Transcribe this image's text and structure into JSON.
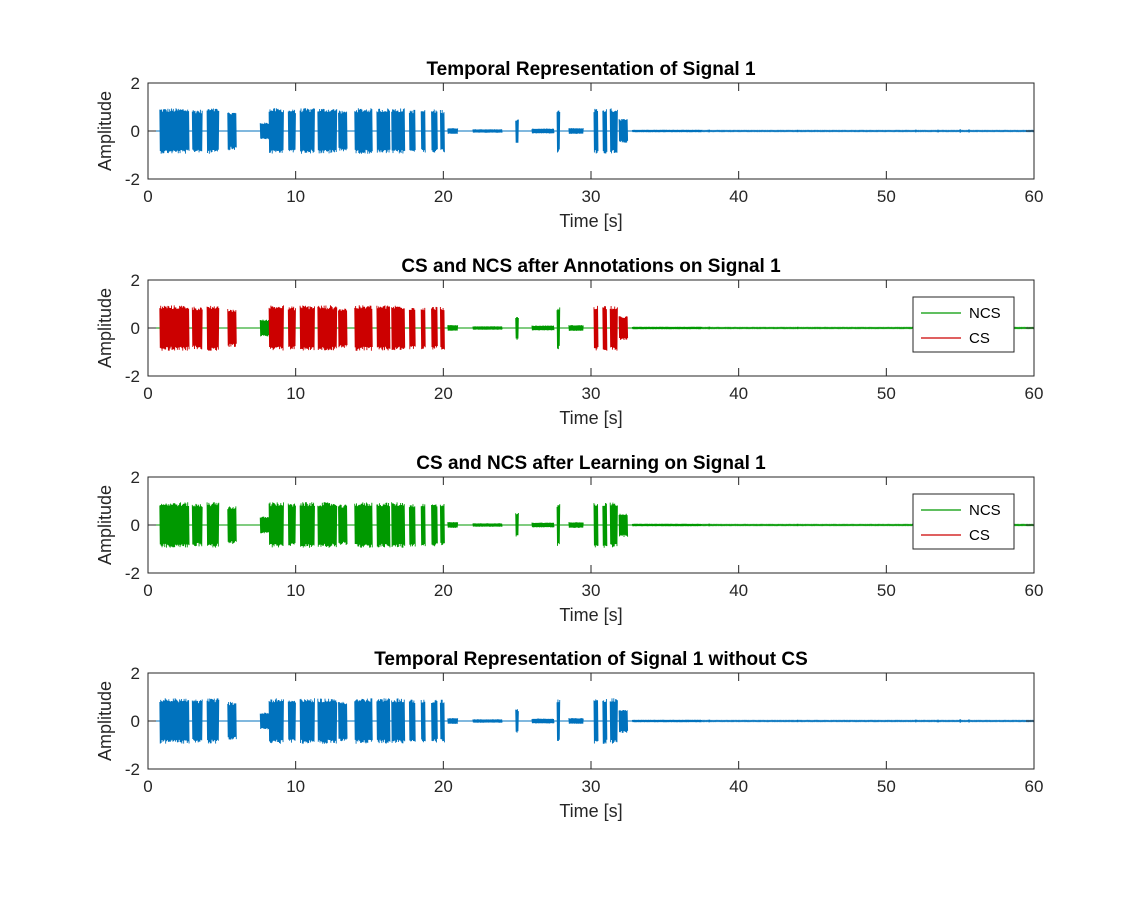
{
  "chart_data": [
    {
      "type": "line",
      "title": "Temporal Representation of Signal 1",
      "xlabel": "Time [s]",
      "ylabel": "Amplitude",
      "xlim": [
        0,
        60
      ],
      "ylim": [
        -2,
        2
      ],
      "xticks": [
        "0",
        "10",
        "20",
        "30",
        "40",
        "50",
        "60"
      ],
      "yticks": [
        "2",
        "0",
        "-2"
      ],
      "grid": false,
      "legend": null,
      "colors": {
        "signal": "#0072BD"
      },
      "bursts": [
        [
          0.8,
          2.8,
          0.95,
          "signal"
        ],
        [
          3.0,
          3.7,
          0.9,
          "signal"
        ],
        [
          4.0,
          4.8,
          0.95,
          "signal"
        ],
        [
          5.4,
          6.0,
          0.8,
          "signal"
        ],
        [
          7.6,
          8.4,
          0.35,
          "signal"
        ],
        [
          8.2,
          9.2,
          0.95,
          "signal"
        ],
        [
          9.5,
          10.0,
          0.9,
          "signal"
        ],
        [
          10.3,
          11.3,
          0.95,
          "signal"
        ],
        [
          11.5,
          12.8,
          0.95,
          "signal"
        ],
        [
          12.9,
          13.5,
          0.85,
          "signal"
        ],
        [
          14.0,
          15.2,
          0.95,
          "signal"
        ],
        [
          15.5,
          16.4,
          0.95,
          "signal"
        ],
        [
          16.5,
          17.4,
          0.95,
          "signal"
        ],
        [
          17.7,
          18.1,
          0.9,
          "signal"
        ],
        [
          18.5,
          18.8,
          0.9,
          "signal"
        ],
        [
          19.2,
          19.6,
          0.9,
          "signal"
        ],
        [
          19.8,
          20.1,
          0.9,
          "signal"
        ],
        [
          20.3,
          21.0,
          0.12,
          "signal"
        ],
        [
          22.0,
          24.0,
          0.07,
          "signal"
        ],
        [
          24.9,
          25.1,
          0.5,
          "signal"
        ],
        [
          26.0,
          27.5,
          0.1,
          "signal"
        ],
        [
          27.7,
          27.9,
          0.9,
          "signal"
        ],
        [
          28.5,
          29.5,
          0.12,
          "signal"
        ],
        [
          30.2,
          30.5,
          0.95,
          "signal"
        ],
        [
          30.8,
          31.1,
          0.95,
          "signal"
        ],
        [
          31.3,
          31.8,
          0.95,
          "signal"
        ],
        [
          31.9,
          32.5,
          0.5,
          "signal"
        ],
        [
          32.8,
          37.5,
          0.05,
          "signal"
        ],
        [
          37.5,
          60.0,
          0.02,
          "signal"
        ]
      ]
    },
    {
      "type": "line",
      "title": "CS and NCS after Annotations on Signal 1",
      "xlabel": "Time [s]",
      "ylabel": "Amplitude",
      "xlim": [
        0,
        60
      ],
      "ylim": [
        -2,
        2
      ],
      "xticks": [
        "0",
        "10",
        "20",
        "30",
        "40",
        "50",
        "60"
      ],
      "yticks": [
        "2",
        "0",
        "-2"
      ],
      "grid": false,
      "legend": {
        "position": "right",
        "entries": [
          {
            "key": "NCS",
            "label": "NCS"
          },
          {
            "key": "CS",
            "label": "CS"
          }
        ]
      },
      "colors": {
        "NCS": "#009900",
        "CS": "#CC0000"
      },
      "bursts": [
        [
          0.8,
          2.8,
          0.95,
          "CS"
        ],
        [
          3.0,
          3.7,
          0.9,
          "CS"
        ],
        [
          4.0,
          4.8,
          0.95,
          "CS"
        ],
        [
          5.4,
          6.0,
          0.8,
          "CS"
        ],
        [
          7.6,
          8.4,
          0.35,
          "NCS"
        ],
        [
          8.2,
          9.2,
          0.95,
          "CS"
        ],
        [
          9.5,
          10.0,
          0.9,
          "CS"
        ],
        [
          10.3,
          11.3,
          0.95,
          "CS"
        ],
        [
          11.5,
          12.8,
          0.95,
          "CS"
        ],
        [
          12.9,
          13.5,
          0.85,
          "CS"
        ],
        [
          14.0,
          15.2,
          0.95,
          "CS"
        ],
        [
          15.5,
          16.4,
          0.95,
          "CS"
        ],
        [
          16.5,
          17.4,
          0.95,
          "CS"
        ],
        [
          17.7,
          18.1,
          0.9,
          "CS"
        ],
        [
          18.5,
          18.8,
          0.9,
          "CS"
        ],
        [
          19.2,
          19.6,
          0.9,
          "CS"
        ],
        [
          19.8,
          20.1,
          0.9,
          "CS"
        ],
        [
          20.3,
          21.0,
          0.12,
          "NCS"
        ],
        [
          22.0,
          24.0,
          0.07,
          "NCS"
        ],
        [
          24.9,
          25.1,
          0.5,
          "NCS"
        ],
        [
          26.0,
          27.5,
          0.1,
          "NCS"
        ],
        [
          27.7,
          27.9,
          0.9,
          "NCS"
        ],
        [
          28.5,
          29.5,
          0.12,
          "NCS"
        ],
        [
          30.2,
          30.5,
          0.95,
          "CS"
        ],
        [
          30.8,
          31.1,
          0.95,
          "CS"
        ],
        [
          31.3,
          31.8,
          0.95,
          "CS"
        ],
        [
          31.9,
          32.5,
          0.5,
          "CS"
        ],
        [
          32.8,
          37.5,
          0.05,
          "NCS"
        ],
        [
          37.5,
          60.0,
          0.02,
          "NCS"
        ]
      ]
    },
    {
      "type": "line",
      "title": "CS and NCS after Learning on Signal 1",
      "xlabel": "Time [s]",
      "ylabel": "Amplitude",
      "xlim": [
        0,
        60
      ],
      "ylim": [
        -2,
        2
      ],
      "xticks": [
        "0",
        "10",
        "20",
        "30",
        "40",
        "50",
        "60"
      ],
      "yticks": [
        "2",
        "0",
        "-2"
      ],
      "grid": false,
      "legend": {
        "position": "right",
        "entries": [
          {
            "key": "NCS",
            "label": "NCS"
          },
          {
            "key": "CS",
            "label": "CS"
          }
        ]
      },
      "colors": {
        "NCS": "#009900",
        "CS": "#CC0000"
      },
      "bursts": [
        [
          0.8,
          2.8,
          0.95,
          "NCS"
        ],
        [
          3.0,
          3.7,
          0.9,
          "NCS"
        ],
        [
          4.0,
          4.8,
          0.95,
          "NCS"
        ],
        [
          5.4,
          6.0,
          0.8,
          "NCS"
        ],
        [
          7.6,
          8.4,
          0.35,
          "NCS"
        ],
        [
          8.2,
          9.2,
          0.95,
          "NCS"
        ],
        [
          9.5,
          10.0,
          0.9,
          "NCS"
        ],
        [
          10.3,
          11.3,
          0.95,
          "NCS"
        ],
        [
          11.5,
          12.8,
          0.95,
          "NCS"
        ],
        [
          12.9,
          13.5,
          0.85,
          "NCS"
        ],
        [
          14.0,
          15.2,
          0.95,
          "NCS"
        ],
        [
          15.5,
          16.4,
          0.95,
          "NCS"
        ],
        [
          16.5,
          17.4,
          0.95,
          "NCS"
        ],
        [
          17.7,
          18.1,
          0.9,
          "NCS"
        ],
        [
          18.5,
          18.8,
          0.9,
          "NCS"
        ],
        [
          19.2,
          19.6,
          0.9,
          "NCS"
        ],
        [
          19.8,
          20.1,
          0.9,
          "NCS"
        ],
        [
          20.3,
          21.0,
          0.12,
          "NCS"
        ],
        [
          22.0,
          24.0,
          0.07,
          "NCS"
        ],
        [
          24.9,
          25.1,
          0.5,
          "NCS"
        ],
        [
          26.0,
          27.5,
          0.1,
          "NCS"
        ],
        [
          27.7,
          27.9,
          0.9,
          "NCS"
        ],
        [
          28.5,
          29.5,
          0.12,
          "NCS"
        ],
        [
          30.2,
          30.5,
          0.95,
          "NCS"
        ],
        [
          30.8,
          31.1,
          0.95,
          "NCS"
        ],
        [
          31.3,
          31.8,
          0.95,
          "NCS"
        ],
        [
          31.9,
          32.5,
          0.5,
          "NCS"
        ],
        [
          32.8,
          37.5,
          0.05,
          "NCS"
        ],
        [
          37.5,
          60.0,
          0.02,
          "NCS"
        ]
      ]
    },
    {
      "type": "line",
      "title": "Temporal Representation of Signal 1 without CS",
      "xlabel": "Time [s]",
      "ylabel": "Amplitude",
      "xlim": [
        0,
        60
      ],
      "ylim": [
        -2,
        2
      ],
      "xticks": [
        "0",
        "10",
        "20",
        "30",
        "40",
        "50",
        "60"
      ],
      "yticks": [
        "2",
        "0",
        "-2"
      ],
      "grid": false,
      "legend": null,
      "colors": {
        "signal": "#0072BD"
      },
      "bursts": [
        [
          0.8,
          2.8,
          0.95,
          "signal"
        ],
        [
          3.0,
          3.7,
          0.9,
          "signal"
        ],
        [
          4.0,
          4.8,
          0.95,
          "signal"
        ],
        [
          5.4,
          6.0,
          0.8,
          "signal"
        ],
        [
          7.6,
          8.4,
          0.35,
          "signal"
        ],
        [
          8.2,
          9.2,
          0.95,
          "signal"
        ],
        [
          9.5,
          10.0,
          0.9,
          "signal"
        ],
        [
          10.3,
          11.3,
          0.95,
          "signal"
        ],
        [
          11.5,
          12.8,
          0.95,
          "signal"
        ],
        [
          12.9,
          13.5,
          0.85,
          "signal"
        ],
        [
          14.0,
          15.2,
          0.95,
          "signal"
        ],
        [
          15.5,
          16.4,
          0.95,
          "signal"
        ],
        [
          16.5,
          17.4,
          0.95,
          "signal"
        ],
        [
          17.7,
          18.1,
          0.9,
          "signal"
        ],
        [
          18.5,
          18.8,
          0.9,
          "signal"
        ],
        [
          19.2,
          19.6,
          0.9,
          "signal"
        ],
        [
          19.8,
          20.1,
          0.9,
          "signal"
        ],
        [
          20.3,
          21.0,
          0.12,
          "signal"
        ],
        [
          22.0,
          24.0,
          0.07,
          "signal"
        ],
        [
          24.9,
          25.1,
          0.5,
          "signal"
        ],
        [
          26.0,
          27.5,
          0.1,
          "signal"
        ],
        [
          27.7,
          27.9,
          0.9,
          "signal"
        ],
        [
          28.5,
          29.5,
          0.12,
          "signal"
        ],
        [
          30.2,
          30.5,
          0.95,
          "signal"
        ],
        [
          30.8,
          31.1,
          0.95,
          "signal"
        ],
        [
          31.3,
          31.8,
          0.95,
          "signal"
        ],
        [
          31.9,
          32.5,
          0.5,
          "signal"
        ],
        [
          32.8,
          37.5,
          0.05,
          "signal"
        ],
        [
          37.5,
          60.0,
          0.02,
          "signal"
        ]
      ]
    }
  ]
}
